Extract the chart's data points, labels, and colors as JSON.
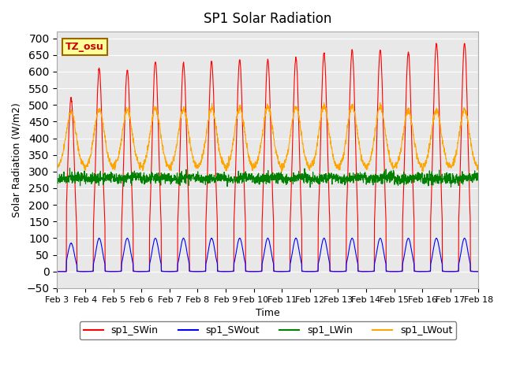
{
  "title": "SP1 Solar Radiation",
  "ylabel": "Solar Radiation (W/m2)",
  "xlabel": "Time",
  "ylim": [
    -50,
    720
  ],
  "yticks": [
    -50,
    0,
    50,
    100,
    150,
    200,
    250,
    300,
    350,
    400,
    450,
    500,
    550,
    600,
    650,
    700
  ],
  "bg_color": "#e8e8e8",
  "grid_color": "white",
  "colors": {
    "SWin": "red",
    "SWout": "blue",
    "LWin": "green",
    "LWout": "orange"
  },
  "tz_label": "TZ_osu",
  "tz_color": "#cc0000",
  "tz_bg": "#ffff99",
  "tz_border": "#996600",
  "n_days": 15,
  "start_day": 3,
  "SWin_peaks": [
    520,
    610,
    605,
    630,
    625,
    630,
    635,
    635,
    640,
    655,
    665,
    665,
    660,
    685,
    685
  ],
  "SWout_peaks": [
    85,
    100,
    100,
    100,
    100,
    100,
    100,
    100,
    100,
    100,
    100,
    100,
    100,
    100,
    100
  ],
  "LWin_base": 280,
  "LWout_base": 310,
  "LWout_peaks": [
    420,
    440,
    435,
    445,
    445,
    450,
    455,
    460,
    465,
    465,
    465,
    460,
    430,
    430,
    440
  ]
}
